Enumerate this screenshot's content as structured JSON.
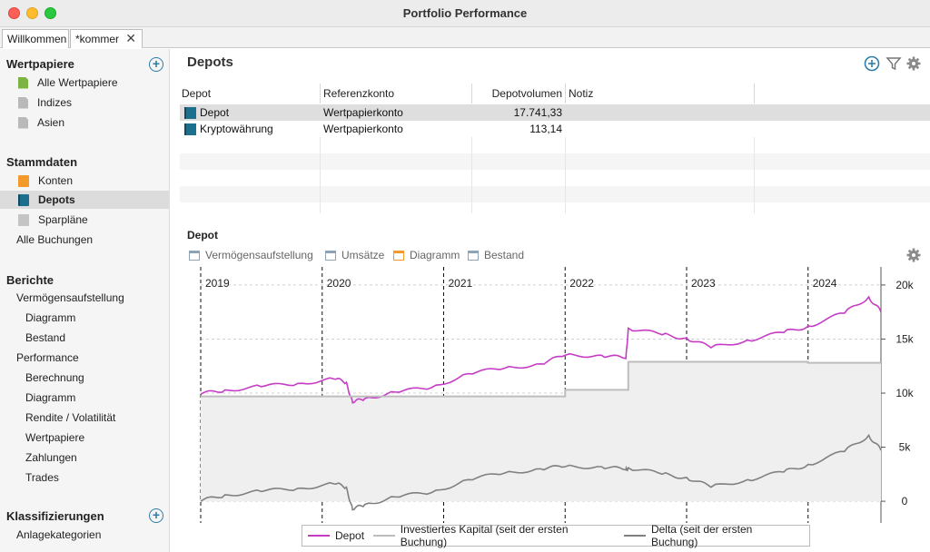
{
  "window": {
    "title": "Portfolio Performance"
  },
  "tabs": [
    {
      "label": "Willkommen"
    },
    {
      "label": "*kommer"
    }
  ],
  "sidebar": {
    "wertpapiere": {
      "header": "Wertpapiere",
      "items": [
        "Alle Wertpapiere",
        "Indizes",
        "Asien"
      ]
    },
    "stammdaten": {
      "header": "Stammdaten",
      "items": [
        "Konten",
        "Depots",
        "Sparpläne",
        "Alle Buchungen"
      ]
    },
    "berichte": {
      "header": "Berichte",
      "items": [
        "Vermögensaufstellung",
        "Diagramm",
        "Bestand",
        "Performance",
        "Berechnung",
        "Diagramm",
        "Rendite / Volatilität",
        "Wertpapiere",
        "Zahlungen",
        "Trades"
      ]
    },
    "klassifizierungen": {
      "header": "Klassifizierungen",
      "items": [
        "Anlagekategorien"
      ]
    }
  },
  "main": {
    "title": "Depots",
    "columns": [
      "Depot",
      "Referenzkonto",
      "Depotvolumen",
      "Notiz"
    ],
    "rows": [
      {
        "name": "Depot",
        "account": "Wertpapierkonto",
        "volume": "17.741,33",
        "note": ""
      },
      {
        "name": "Kryptowährung",
        "account": "Wertpapierkonto",
        "volume": "113,14",
        "note": ""
      }
    ]
  },
  "chart_panel": {
    "title": "Depot",
    "tabs": [
      "Vermögensaufstellung",
      "Umsätze",
      "Diagramm",
      "Bestand"
    ]
  },
  "colors": {
    "depot": "#c53dc5",
    "invested": "#bdbdbd",
    "delta": "#808080",
    "accent": "#2d7da5"
  },
  "chart_data": {
    "type": "line",
    "title": "Depot",
    "x_labels": [
      "2019",
      "2020",
      "2021",
      "2022",
      "2023",
      "2024"
    ],
    "y_ticks": [
      "20k",
      "15k",
      "10k",
      "5k",
      "0"
    ],
    "ylim": [
      -1000,
      21000
    ],
    "x": [
      2019.0,
      2019.2,
      2019.5,
      2019.8,
      2020.1,
      2020.2,
      2020.25,
      2020.35,
      2020.6,
      2020.9,
      2021.2,
      2021.5,
      2021.8,
      2022.0,
      2022.3,
      2022.5,
      2022.52,
      2022.8,
      2023.0,
      2023.2,
      2023.5,
      2023.8,
      2024.0,
      2024.3,
      2024.5,
      2024.6
    ],
    "series": [
      {
        "name": "Depot",
        "values": [
          9900,
          10300,
          10600,
          10900,
          11300,
          11000,
          9100,
          9500,
          10100,
          10500,
          11800,
          12300,
          12700,
          13500,
          13500,
          13200,
          16000,
          15400,
          15100,
          14200,
          14900,
          15600,
          16200,
          17400,
          18900,
          17500
        ]
      },
      {
        "name": "Investiertes Kapital (seit der ersten Buchung)",
        "values": [
          9700,
          9700,
          9700,
          9700,
          9700,
          9700,
          9700,
          9700,
          9700,
          9700,
          9700,
          9700,
          9700,
          10300,
          10300,
          10300,
          12900,
          12900,
          12900,
          12900,
          12900,
          12900,
          12800,
          12800,
          12800,
          12800
        ]
      },
      {
        "name": "Delta (seit der ersten Buchung)",
        "values": [
          0,
          600,
          900,
          1200,
          1600,
          1300,
          -800,
          -300,
          400,
          800,
          2000,
          2600,
          3000,
          3200,
          3200,
          2900,
          3100,
          2500,
          2200,
          1300,
          2000,
          2700,
          3400,
          4600,
          6100,
          4700
        ]
      }
    ]
  }
}
